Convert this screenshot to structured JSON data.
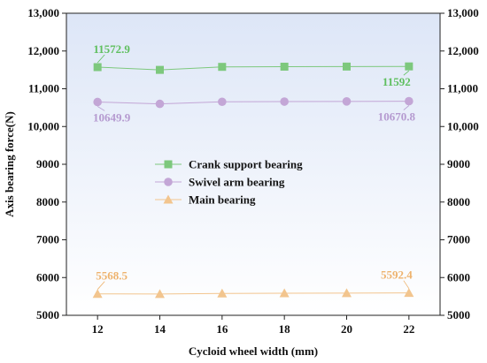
{
  "chart_data": {
    "type": "line",
    "title": "",
    "xlabel": "Cycloid wheel width (mm)",
    "ylabel": "Axis bearing force(N)",
    "x": [
      12,
      14,
      16,
      18,
      20,
      22
    ],
    "xlim": [
      11,
      23
    ],
    "ylim": [
      5000,
      13000
    ],
    "y_ticks": [
      5000,
      6000,
      7000,
      8000,
      9000,
      10000,
      11000,
      12000,
      13000
    ],
    "y_tick_labels": [
      "5000",
      "6000",
      "7000",
      "8000",
      "9000",
      "10,000",
      "11,000",
      "12,000",
      "13,000"
    ],
    "secondary_y_tick_labels": [
      "5000",
      "6000",
      "7000",
      "8000",
      "9000",
      "10,000",
      "11,000",
      "12,000",
      "13,000"
    ],
    "x_tick_labels": [
      "12",
      "14",
      "16",
      "18",
      "20",
      "22"
    ],
    "grid": false,
    "legend_position": "center",
    "series": [
      {
        "name": "Crank support bearing",
        "marker": "square",
        "color": "#7dc87d",
        "values": [
          11572.9,
          11500,
          11580,
          11585,
          11588,
          11592
        ],
        "annotations": [
          {
            "index": 0,
            "text": "11572.9",
            "position": "above"
          },
          {
            "index": 5,
            "text": "11592",
            "position": "below"
          }
        ]
      },
      {
        "name": "Swivel arm bearing",
        "marker": "circle",
        "color": "#c3a6d6",
        "values": [
          10649.9,
          10600,
          10655,
          10660,
          10665,
          10670.8
        ],
        "annotations": [
          {
            "index": 0,
            "text": "10649.9",
            "position": "below"
          },
          {
            "index": 5,
            "text": "10670.8",
            "position": "below"
          }
        ]
      },
      {
        "name": "Main bearing",
        "marker": "triangle",
        "color": "#f2c58e",
        "values": [
          5568.5,
          5565,
          5580,
          5585,
          5588,
          5592.4
        ],
        "annotations": [
          {
            "index": 0,
            "text": "5568.5",
            "position": "above"
          },
          {
            "index": 5,
            "text": "5592.4",
            "position": "above"
          }
        ]
      }
    ],
    "colors": {
      "plot_background_top": "#dde6f7",
      "plot_background_bottom": "#ffffff",
      "label_crank": "#5fbf5f",
      "label_swivel": "#b59ad0",
      "label_main": "#eeb36e"
    }
  }
}
